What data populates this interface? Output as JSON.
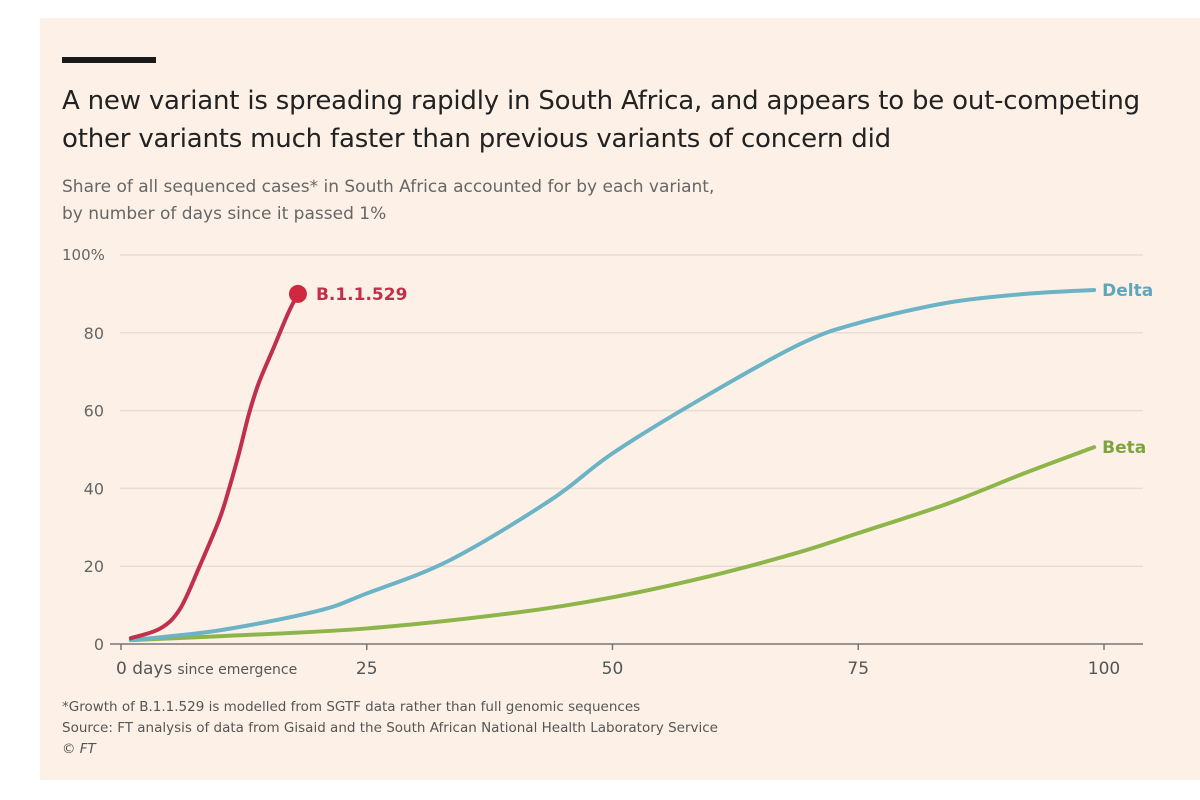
{
  "header": {
    "title": "A new variant is spreading rapidly in South Africa, and appears to be out-competing other variants much faster than previous variants of concern did",
    "subtitle_line1": "Share of all sequenced cases* in South Africa accounted for by each variant,",
    "subtitle_line2": "by number of days since it passed 1%"
  },
  "footer": {
    "note": "*Growth of B.1.1.529 is modelled from SGTF data rather than full genomic sequences",
    "source": "Source: FT analysis of data from Gisaid and the South African National Health Laboratory Service",
    "copyright": "© FT"
  },
  "chart_data": {
    "type": "line",
    "title": "A new variant is spreading rapidly in South Africa, and appears to be out-competing other variants much faster than previous variants of concern did",
    "subtitle": "Share of all sequenced cases* in South Africa accounted for by each variant, by number of days since it passed 1%",
    "xlabel": "days since emergence",
    "ylabel": "",
    "xlim": [
      0,
      104
    ],
    "ylim": [
      0,
      100
    ],
    "x_ticks": [
      0,
      25,
      50,
      75,
      100
    ],
    "x_tick_labels": [
      "0 days",
      "25",
      "50",
      "75",
      "100"
    ],
    "x_first_tick_suffix": "since emergence",
    "y_ticks": [
      0,
      20,
      40,
      60,
      80,
      100
    ],
    "y_tick_labels": [
      "0",
      "20",
      "40",
      "60",
      "80",
      "100%"
    ],
    "grid": true,
    "legend": "direct labels at line ends",
    "series": [
      {
        "name": "B.1.1.529",
        "color": "#c0304a",
        "end_marker": true,
        "x": [
          1,
          4,
          6,
          8,
          10,
          11,
          12,
          13,
          14,
          15.5,
          17,
          18
        ],
        "y": [
          1.5,
          4,
          9,
          20,
          32,
          40,
          49,
          59,
          67,
          76,
          85,
          90
        ]
      },
      {
        "name": "Delta",
        "color": "#6cb3c6",
        "end_marker": false,
        "x": [
          1,
          10,
          20,
          25,
          33.5,
          43.7,
          50,
          59,
          69,
          75,
          84,
          92,
          99
        ],
        "y": [
          1,
          3.5,
          8.5,
          13,
          21.6,
          37,
          49,
          63,
          77,
          82.5,
          87.7,
          90,
          91
        ]
      },
      {
        "name": "Beta",
        "color": "#8db54a",
        "end_marker": false,
        "x": [
          1,
          10,
          25,
          40,
          50,
          60,
          69,
          75,
          84,
          92,
          99
        ],
        "y": [
          1,
          2,
          4,
          8,
          12,
          17.5,
          23.6,
          28.5,
          36,
          44,
          50.6
        ]
      }
    ]
  }
}
